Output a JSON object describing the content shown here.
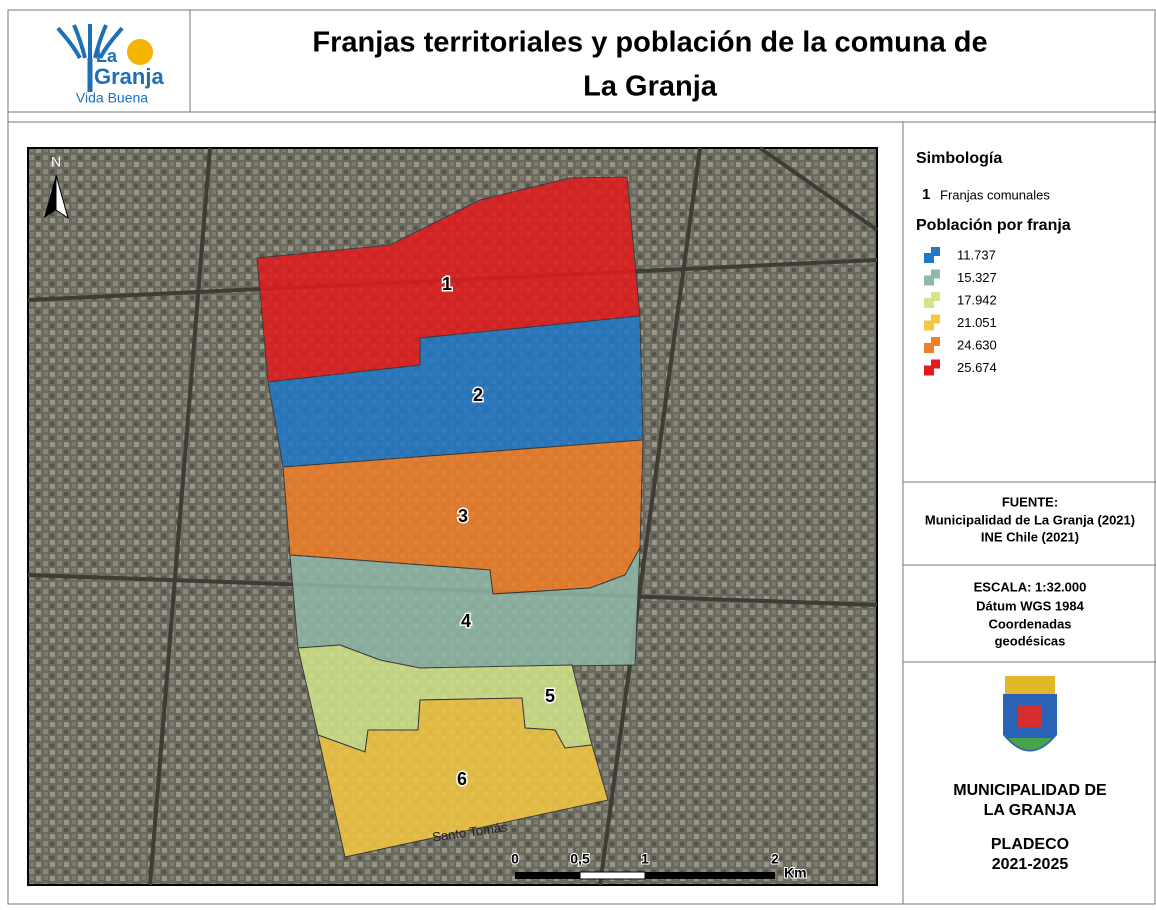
{
  "header": {
    "logo": {
      "la": "La",
      "granja": "Granja",
      "tagline": "Vida Buena"
    },
    "title_line1": "Franjas territoriales y población de la comuna de",
    "title_line2": "La Granja"
  },
  "map": {
    "north": "N",
    "street": "Santo Tomás",
    "zones": [
      "1",
      "2",
      "3",
      "4",
      "5",
      "6"
    ],
    "scale": {
      "ticks": [
        "0",
        "0,5",
        "1",
        "2"
      ],
      "unit": "Km"
    }
  },
  "legend": {
    "title": "Simbología",
    "label_symbol": "1",
    "label_text": "Franjas comunales",
    "population_title": "Población por franja",
    "items": [
      "11.737",
      "15.327",
      "17.942",
      "21.051",
      "24.630",
      "25.674"
    ]
  },
  "source": {
    "title": "FUENTE:",
    "lines": [
      "Municipalidad de La Granja (2021)",
      "INE Chile (2021)"
    ]
  },
  "scale_info": {
    "title": "ESCALA: 1:32.000",
    "lines": [
      "Dátum WGS 1984",
      "Coordenadas",
      "geodésicas"
    ]
  },
  "footer": {
    "org_line1": "MUNICIPALIDAD DE",
    "org_line2": "LA GRANJA",
    "plan": "PLADECO",
    "years": "2021-2025"
  }
}
